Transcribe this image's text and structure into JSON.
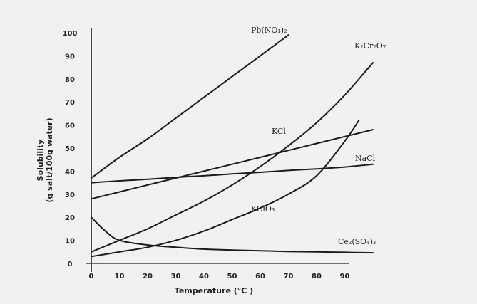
{
  "chart_data": {
    "type": "line",
    "xlabel": "Temperature (°C )",
    "ylabel_line1": "Solubility",
    "ylabel_line2": "(g salt/100g water)",
    "xlim": [
      0,
      100
    ],
    "ylim": [
      0,
      100
    ],
    "x_ticks": [
      "0",
      "10",
      "20",
      "30",
      "40",
      "50",
      "60",
      "70",
      "80",
      "90"
    ],
    "y_ticks": [
      "0",
      "10",
      "20",
      "30",
      "40",
      "50",
      "60",
      "70",
      "80",
      "90",
      "100"
    ],
    "grid": false,
    "series": [
      {
        "name": "Pb(NO3)2",
        "x": [
          0,
          10,
          20,
          30,
          40,
          50,
          60,
          70
        ],
        "y": [
          37,
          46,
          54,
          63,
          72,
          81,
          90,
          99
        ]
      },
      {
        "name": "K2Cr2O7",
        "x": [
          0,
          10,
          20,
          30,
          40,
          50,
          60,
          70,
          80,
          90,
          100
        ],
        "y": [
          5,
          10,
          15,
          21,
          27,
          34,
          42,
          51,
          61,
          73,
          87
        ]
      },
      {
        "name": "KCl",
        "x": [
          0,
          10,
          20,
          30,
          40,
          50,
          60,
          70,
          80,
          90,
          100
        ],
        "y": [
          28,
          31,
          34,
          37,
          40,
          43,
          46,
          49,
          52,
          55,
          58
        ]
      },
      {
        "name": "NaCl",
        "x": [
          0,
          10,
          20,
          30,
          40,
          50,
          60,
          70,
          80,
          90,
          100
        ],
        "y": [
          35,
          35.8,
          36.5,
          37.3,
          38,
          38.8,
          39.5,
          40.3,
          41,
          41.8,
          43
        ]
      },
      {
        "name": "KClO3",
        "x": [
          0,
          10,
          20,
          30,
          40,
          50,
          60,
          70,
          80,
          90,
          95
        ],
        "y": [
          3,
          5,
          7,
          10,
          14,
          19,
          24,
          30,
          38,
          53,
          62
        ]
      },
      {
        "name": "Ce2(SO4)3",
        "x": [
          0,
          5,
          10,
          20,
          30,
          40,
          50,
          60,
          70,
          80,
          90,
          100
        ],
        "y": [
          20,
          14,
          10,
          8,
          7,
          6.2,
          5.8,
          5.5,
          5.2,
          5,
          4.8,
          4.6
        ]
      }
    ],
    "labels": [
      {
        "series": "Pb(NO3)2",
        "text": "Pb(NO₃)₂"
      },
      {
        "series": "K2Cr2O7",
        "text": "K₂Cr₂O₇"
      },
      {
        "series": "KCl",
        "text": "KCl"
      },
      {
        "series": "NaCl",
        "text": "NaCl"
      },
      {
        "series": "KClO3",
        "text": "KClO₃"
      },
      {
        "series": "Ce2(SO4)3",
        "text": "Ce₂(SO₄)₃"
      }
    ]
  }
}
